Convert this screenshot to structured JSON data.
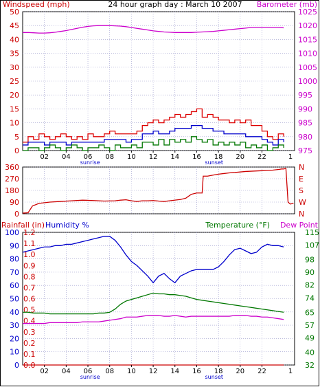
{
  "header": {
    "title": "24 hour graph day : March 10 2007",
    "left_label": "Windspeed (mph)",
    "right_label": "Barometer (mb)"
  },
  "panel3_labels": {
    "rainfall": "Rainfall (in)",
    "humidity": "Humidity %",
    "temperature": "Temperature (°F)",
    "dewpoint": "Dew Point"
  },
  "colors": {
    "wind_avg": "#0000cc",
    "wind_gust": "#dd0000",
    "wind_low": "#007700",
    "barometer": "#cc00cc",
    "direction": "#cc0000",
    "humidity": "#0000cc",
    "temperature": "#007700",
    "dewpoint": "#cc00cc",
    "rainfall": "#cc0000",
    "axis_red": "#cc0000",
    "axis_magenta": "#cc00cc",
    "axis_blue": "#0000cc",
    "axis_green": "#007700",
    "grid": "#9999cc"
  },
  "x_axis": {
    "ticks": [
      "02",
      "04",
      "06",
      "08",
      "10",
      "12",
      "14",
      "16",
      "18",
      "20",
      "22"
    ],
    "end_tick": "1",
    "sunrise_label": "sunrise",
    "sunset_label": "sunset"
  },
  "chart_data": [
    {
      "type": "line",
      "x": [
        0,
        0.5,
        1,
        1.5,
        2,
        2.5,
        3,
        3.5,
        4,
        4.5,
        5,
        5.5,
        6,
        6.5,
        7,
        7.5,
        8,
        8.5,
        9,
        9.5,
        10,
        10.5,
        11,
        11.5,
        12,
        12.5,
        13,
        13.5,
        14,
        14.5,
        15,
        15.5,
        16,
        16.5,
        17,
        17.5,
        18,
        18.5,
        19,
        19.5,
        20,
        20.5,
        21,
        21.5,
        22,
        22.5,
        23,
        23.5,
        24
      ],
      "x_unit": "hour",
      "y_left_label": "Windspeed (mph)",
      "y_left_ticks": [
        0,
        5,
        10,
        15,
        20,
        25,
        30,
        35,
        40,
        45,
        50
      ],
      "y_left_lim": [
        0,
        50
      ],
      "y_right_label": "Barometer (mb)",
      "y_right_ticks": [
        975,
        980,
        985,
        990,
        995,
        1000,
        1005,
        1010,
        1015,
        1020,
        1025
      ],
      "y_right_lim": [
        975,
        1025
      ],
      "series": [
        {
          "key": "gust",
          "axis": "left",
          "values": [
            3,
            5,
            4,
            6,
            5,
            4,
            5,
            6,
            5,
            4,
            5,
            4,
            6,
            5,
            5,
            6,
            7,
            6,
            6,
            6,
            6,
            7,
            9,
            10,
            11,
            10,
            11,
            12,
            13,
            12,
            13,
            14,
            15,
            12,
            13,
            12,
            11,
            11,
            10,
            11,
            10,
            11,
            9,
            9,
            7,
            5,
            4,
            6,
            5
          ]
        },
        {
          "key": "avg",
          "axis": "left",
          "values": [
            2,
            3,
            3,
            3,
            2,
            3,
            3,
            3,
            2,
            3,
            3,
            3,
            3,
            3,
            3,
            4,
            4,
            4,
            4,
            3,
            4,
            4,
            6,
            6,
            7,
            6,
            6,
            7,
            8,
            8,
            8,
            9,
            9,
            8,
            8,
            7,
            7,
            6,
            6,
            6,
            6,
            5,
            5,
            5,
            4,
            3,
            2,
            4,
            3
          ]
        },
        {
          "key": "low",
          "axis": "left",
          "values": [
            0,
            1,
            1,
            0,
            1,
            2,
            1,
            0,
            1,
            2,
            1,
            0,
            1,
            1,
            2,
            1,
            0,
            2,
            1,
            1,
            2,
            1,
            3,
            3,
            2,
            4,
            2,
            4,
            3,
            4,
            3,
            5,
            4,
            3,
            4,
            2,
            3,
            2,
            3,
            2,
            3,
            1,
            2,
            1,
            2,
            0,
            1,
            2,
            1
          ]
        },
        {
          "key": "barometer",
          "axis": "right",
          "values": [
            1017.5,
            1017.5,
            1017.4,
            1017.3,
            1017.3,
            1017.4,
            1017.6,
            1017.9,
            1018.2,
            1018.6,
            1019.0,
            1019.4,
            1019.7,
            1019.9,
            1020.0,
            1020.0,
            1020.0,
            1019.9,
            1019.8,
            1019.6,
            1019.3,
            1019.0,
            1018.7,
            1018.4,
            1018.1,
            1017.9,
            1017.7,
            1017.6,
            1017.5,
            1017.5,
            1017.5,
            1017.5,
            1017.6,
            1017.7,
            1017.8,
            1017.9,
            1018.1,
            1018.3,
            1018.5,
            1018.7,
            1018.9,
            1019.1,
            1019.3,
            1019.4,
            1019.4,
            1019.4,
            1019.3,
            1019.3,
            1019.2
          ]
        }
      ]
    },
    {
      "type": "line",
      "x_unit": "hour",
      "y_left_ticks": [
        0,
        90,
        180,
        270,
        360
      ],
      "y_left_lim": [
        0,
        360
      ],
      "y_right_ticks": [
        "N",
        "W",
        "S",
        "E",
        "N"
      ],
      "series": [
        {
          "key": "direction",
          "values": [
            5,
            8,
            60,
            80,
            90,
            95,
            100,
            105,
            102,
            98,
            100,
            105,
            108,
            100,
            95,
            100,
            100,
            102,
            98,
            95,
            100,
            105,
            110,
            120,
            150,
            160,
            160,
            290,
            290,
            298,
            305,
            310,
            315,
            318,
            322,
            326,
            328,
            330,
            332,
            334,
            336,
            338,
            340,
            342,
            345,
            345,
            350,
            90,
            75,
            80
          ]
        },
        {
          "key": "direction_x",
          "values": [
            0,
            0.5,
            0.9,
            1.5,
            2.5,
            3.5,
            4.5,
            5.5,
            6.5,
            7.5,
            8.5,
            9,
            9.5,
            10,
            10.5,
            11,
            11.5,
            12,
            12.5,
            13,
            13.5,
            14,
            14.5,
            15,
            15.5,
            16,
            16.5,
            16.6,
            17,
            17.5,
            18,
            18.5,
            19,
            19.5,
            20,
            20.5,
            21,
            21.5,
            22,
            22.5,
            23,
            23.2,
            23.4,
            23.6,
            23.8,
            24,
            24.2,
            24.4,
            24.6,
            24.9
          ]
        }
      ]
    },
    {
      "type": "line",
      "x_unit": "hour",
      "x": [
        0,
        0.5,
        1,
        1.5,
        2,
        2.5,
        3,
        3.5,
        4,
        4.5,
        5,
        5.5,
        6,
        6.5,
        7,
        7.5,
        8,
        8.5,
        9,
        9.5,
        10,
        10.5,
        11,
        11.5,
        12,
        12.5,
        13,
        13.5,
        14,
        14.5,
        15,
        15.5,
        16,
        16.5,
        17,
        17.5,
        18,
        18.5,
        19,
        19.5,
        20,
        20.5,
        21,
        21.5,
        22,
        22.5,
        23,
        23.5,
        24
      ],
      "y_left_ticks": [
        0,
        10,
        20,
        30,
        40,
        50,
        60,
        70,
        80,
        90,
        100
      ],
      "y_left_lim": [
        0,
        100
      ],
      "rain_ticks": [
        0.0,
        0.1,
        0.2,
        0.3,
        0.4,
        0.5,
        0.6,
        0.7,
        0.8,
        0.9,
        1.0,
        1.1,
        1.2
      ],
      "y_right_ticks": [
        32,
        40,
        49,
        57,
        65,
        74,
        82,
        90,
        98,
        107,
        115
      ],
      "y_right_lim": [
        32,
        115
      ],
      "series": [
        {
          "key": "humidity",
          "axis": "left",
          "values": [
            85,
            86,
            87,
            88,
            89,
            89,
            90,
            90,
            91,
            91,
            92,
            93,
            94,
            95,
            96,
            97,
            97,
            94,
            89,
            83,
            78,
            75,
            71,
            67,
            62,
            67,
            69,
            65,
            62,
            67,
            69,
            71,
            72,
            72,
            72,
            72,
            74,
            78,
            83,
            87,
            88,
            86,
            84,
            85,
            89,
            91,
            90,
            90,
            89
          ]
        },
        {
          "key": "temperature",
          "axis": "right",
          "values": [
            65,
            65,
            64.5,
            64.5,
            64.5,
            64,
            64,
            64,
            64,
            64,
            64,
            64,
            64,
            64,
            64.5,
            64.5,
            65,
            67,
            70,
            72,
            73,
            74,
            75,
            76,
            77,
            76.5,
            76.5,
            76,
            76,
            75.5,
            75,
            74,
            73,
            72.5,
            72,
            71.5,
            71,
            70.5,
            70,
            69.5,
            69,
            68.5,
            68,
            67.5,
            67,
            66.5,
            66,
            65.5,
            65
          ]
        },
        {
          "key": "dewpoint",
          "axis": "right",
          "values": [
            58,
            58,
            58,
            58,
            58,
            58.5,
            58.5,
            58.5,
            58.5,
            58.5,
            58.5,
            59,
            59,
            59,
            59,
            59.5,
            60,
            60.5,
            61,
            62,
            62,
            62,
            62.5,
            63,
            63,
            63,
            62.5,
            62.5,
            63,
            62.5,
            62,
            62.5,
            62.5,
            62.5,
            62.5,
            62.5,
            62.5,
            62.5,
            62.5,
            63,
            63,
            63,
            62.5,
            62.5,
            62,
            62,
            61.5,
            61,
            60.5
          ]
        },
        {
          "key": "rainfall",
          "axis": "rain",
          "values": [
            0,
            0,
            0,
            0,
            0,
            0,
            0,
            0,
            0,
            0,
            0,
            0,
            0,
            0,
            0,
            0,
            0,
            0,
            0,
            0,
            0,
            0,
            0,
            0,
            0,
            0,
            0,
            0,
            0,
            0,
            0,
            0,
            0,
            0,
            0,
            0,
            0,
            0,
            0,
            0,
            0,
            0,
            0,
            0,
            0,
            0,
            0,
            0,
            0
          ]
        }
      ]
    }
  ]
}
